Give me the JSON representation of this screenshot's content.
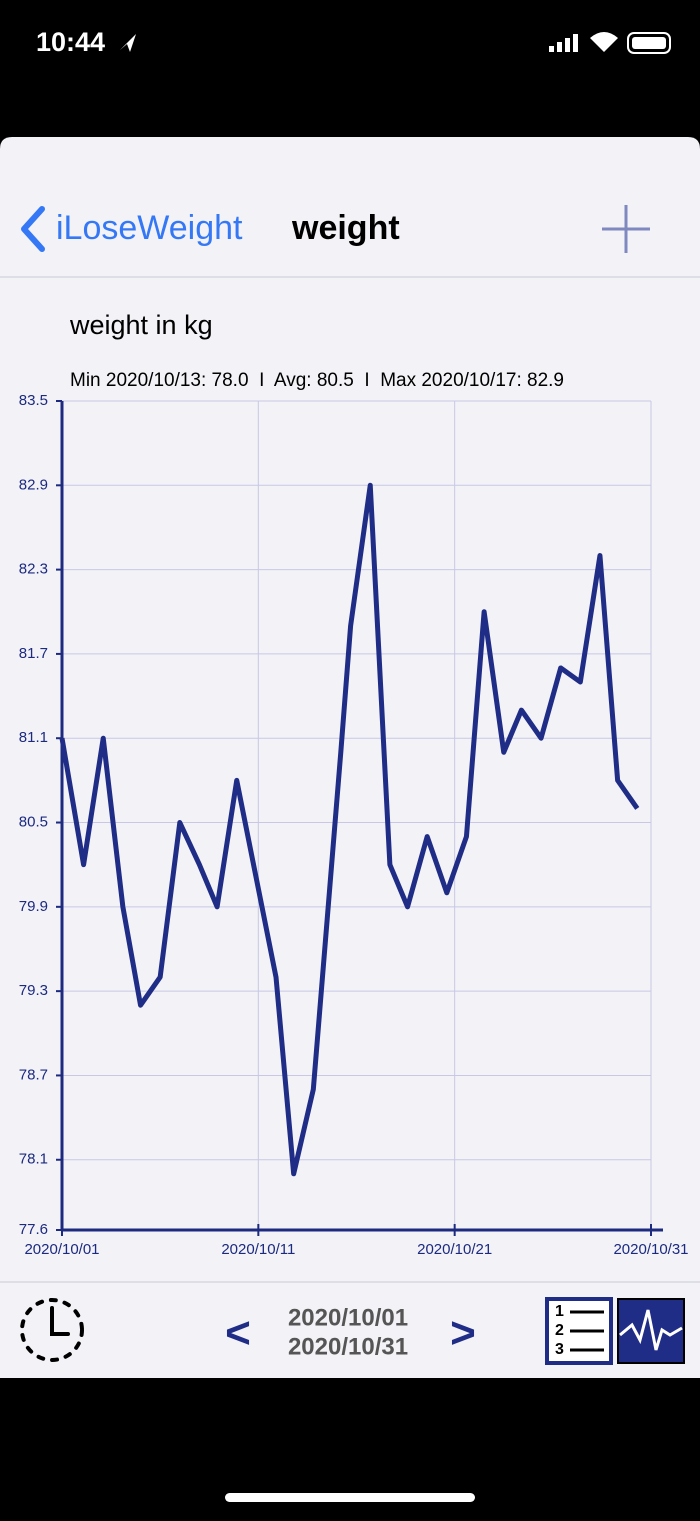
{
  "status_bar": {
    "time": "10:44"
  },
  "nav": {
    "back": "iLoseWeight",
    "title": "weight"
  },
  "chart_data": {
    "type": "line",
    "title": "weight in kg",
    "subtitle": "Min 2020/10/13: 78.0  I  Avg: 80.5  I  Max 2020/10/17: 82.9",
    "x": [
      0,
      1.1,
      2.1,
      3.1,
      4.0,
      5.0,
      6.0,
      7.0,
      7.9,
      8.9,
      9.9,
      10.9,
      11.8,
      12.8,
      14.2,
      14.7,
      15.7,
      16.7,
      17.6,
      18.6,
      19.6,
      20.6,
      21.5,
      22.5,
      23.4,
      24.4,
      25.4,
      26.4,
      27.4,
      28.3,
      29.3
    ],
    "values": [
      81.1,
      80.2,
      81.1,
      79.9,
      79.2,
      79.4,
      80.5,
      80.2,
      79.9,
      80.8,
      80.1,
      79.4,
      78.0,
      78.6,
      81.0,
      81.9,
      82.9,
      80.2,
      79.9,
      80.4,
      80.0,
      80.4,
      82.0,
      81.0,
      81.3,
      81.1,
      81.6,
      81.5,
      82.4,
      80.8,
      80.6
    ],
    "color": "#1f2d86",
    "xlim": [
      0,
      30
    ],
    "xticks": [
      {
        "value": 0,
        "label": "2020/10/01"
      },
      {
        "value": 10,
        "label": "2020/10/11"
      },
      {
        "value": 20,
        "label": "2020/10/21"
      },
      {
        "value": 30,
        "label": "2020/10/31"
      }
    ],
    "ylim": [
      77.6,
      83.5
    ],
    "yticks": [
      77.6,
      78.1,
      78.7,
      79.3,
      79.9,
      80.5,
      81.1,
      81.7,
      82.3,
      82.9,
      83.5
    ],
    "grid": true
  },
  "footer": {
    "range_start": "2020/10/01",
    "range_end": "2020/10/31",
    "prev": "<",
    "next": ">"
  }
}
